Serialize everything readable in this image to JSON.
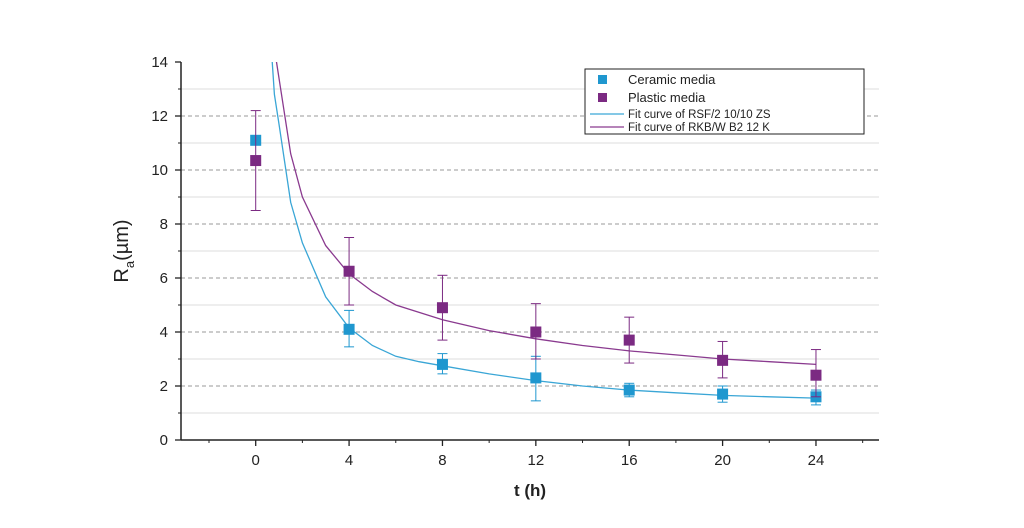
{
  "chart_data": {
    "type": "scatter",
    "xlabel": "t (h)",
    "ylabel": "Ra(µm)",
    "ylabel_main": "R",
    "ylabel_sub": "a",
    "ylabel_rest": "(µm)",
    "xlim": [
      -3.2,
      26.7
    ],
    "ylim": [
      0,
      14
    ],
    "xticks": [
      0,
      4,
      8,
      12,
      16,
      20,
      24
    ],
    "yticks": [
      0,
      2,
      4,
      6,
      8,
      10,
      12,
      14
    ],
    "grid": "horizontal dashed",
    "legend_position": "top-right",
    "series": [
      {
        "name": "Ceramic media",
        "color": "#1f97cf",
        "marker": "square",
        "x": [
          0,
          4,
          8,
          12,
          16,
          20,
          24
        ],
        "y": [
          11.1,
          4.1,
          2.8,
          2.3,
          1.85,
          1.7,
          1.6
        ],
        "yerr_low": [
          11.1,
          3.45,
          2.45,
          1.45,
          1.6,
          1.4,
          1.3
        ],
        "yerr_high": [
          11.1,
          4.8,
          3.2,
          3.1,
          2.1,
          2.0,
          1.85
        ]
      },
      {
        "name": "Plastic media",
        "color": "#7b2a82",
        "marker": "square",
        "x": [
          0,
          4,
          8,
          12,
          16,
          20,
          24
        ],
        "y": [
          10.35,
          6.25,
          4.9,
          4.0,
          3.7,
          2.95,
          2.4
        ],
        "yerr_low": [
          8.5,
          5.0,
          3.7,
          3.0,
          2.85,
          2.3,
          1.6
        ],
        "yerr_high": [
          12.2,
          7.5,
          6.1,
          5.05,
          4.55,
          3.65,
          3.35
        ]
      }
    ],
    "fits": [
      {
        "name": "Fit curve of RSF/2 10/10 ZS",
        "color": "#3aa6d6",
        "x": [
          0.2,
          0.4,
          0.6,
          0.8,
          1,
          1.5,
          2,
          3,
          4,
          5,
          6,
          7,
          8,
          10,
          12,
          14,
          16,
          18,
          20,
          22,
          24
        ],
        "y": [
          19.0,
          17.5,
          15.4,
          12.8,
          11.7,
          8.8,
          7.3,
          5.3,
          4.15,
          3.5,
          3.1,
          2.9,
          2.75,
          2.45,
          2.2,
          2.0,
          1.85,
          1.75,
          1.65,
          1.6,
          1.55
        ]
      },
      {
        "name": "Fit curve of RKB/W B2 12 K",
        "color": "#8a3a8f",
        "x": [
          0.8,
          1,
          1.5,
          2,
          3,
          4,
          5,
          6,
          8,
          10,
          12,
          14,
          16,
          18,
          20,
          22,
          24
        ],
        "y": [
          14.5,
          13.4,
          10.6,
          9.0,
          7.2,
          6.15,
          5.5,
          5.0,
          4.45,
          4.05,
          3.75,
          3.5,
          3.3,
          3.15,
          3.0,
          2.9,
          2.8
        ]
      }
    ]
  }
}
